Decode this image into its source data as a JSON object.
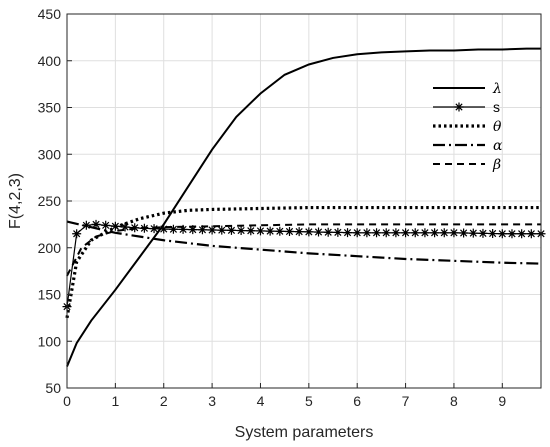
{
  "chart_data": {
    "type": "line",
    "title": "",
    "xlabel": "System parameters",
    "ylabel": "F(4,2,3)",
    "xlim": [
      0,
      9.8
    ],
    "ylim": [
      50,
      450
    ],
    "xticks": [
      0,
      1,
      2,
      3,
      4,
      5,
      6,
      7,
      8,
      9
    ],
    "yticks": [
      50,
      100,
      150,
      200,
      250,
      300,
      350,
      400,
      450
    ],
    "grid": true,
    "legend_position": "top-right",
    "series": [
      {
        "name": "λ",
        "style": "solid",
        "marker": "none",
        "x": [
          0,
          0.2,
          0.5,
          1.0,
          1.5,
          2.0,
          2.5,
          3.0,
          3.5,
          4.0,
          4.5,
          5.0,
          5.5,
          6.0,
          6.5,
          7.0,
          7.5,
          8.0,
          8.5,
          9.0,
          9.5,
          9.8
        ],
        "y": [
          73,
          98,
          122,
          155,
          190,
          225,
          265,
          305,
          340,
          365,
          385,
          396,
          403,
          407,
          409,
          410,
          411,
          411,
          412,
          412,
          413,
          413
        ]
      },
      {
        "name": "s",
        "style": "solid",
        "marker": "star",
        "x": [
          0,
          0.2,
          0.4,
          0.6,
          0.8,
          1.0,
          1.5,
          2.0,
          3.0,
          4.0,
          5.0,
          6.0,
          7.0,
          8.0,
          9.0,
          9.8
        ],
        "y": [
          137,
          215,
          224,
          225,
          224,
          223,
          221,
          220,
          219,
          218,
          217,
          216,
          216,
          216,
          215,
          215
        ]
      },
      {
        "name": "θ",
        "style": "dotted",
        "marker": "none",
        "x": [
          0,
          0.2,
          0.5,
          1.0,
          1.5,
          2.0,
          2.5,
          3.0,
          4.0,
          5.0,
          6.0,
          7.0,
          8.0,
          9.0,
          9.8
        ],
        "y": [
          125,
          185,
          208,
          222,
          231,
          237,
          240,
          241,
          242,
          243,
          243,
          243,
          243,
          243,
          243
        ]
      },
      {
        "name": "α",
        "style": "dashdot",
        "marker": "none",
        "x": [
          0,
          0.5,
          1.0,
          2.0,
          3.0,
          4.0,
          5.0,
          6.0,
          7.0,
          8.0,
          9.0,
          9.8
        ],
        "y": [
          228,
          222,
          216,
          208,
          202,
          198,
          194,
          191,
          188,
          186,
          184,
          183
        ]
      },
      {
        "name": "β",
        "style": "dashed",
        "marker": "none",
        "x": [
          0,
          0.3,
          0.6,
          1.0,
          1.5,
          2.0,
          3.0,
          4.0,
          5.0,
          6.0,
          7.0,
          8.0,
          9.0,
          9.8
        ],
        "y": [
          170,
          200,
          212,
          218,
          221,
          222,
          223,
          224,
          225,
          225,
          225,
          225,
          225,
          225
        ]
      }
    ]
  }
}
